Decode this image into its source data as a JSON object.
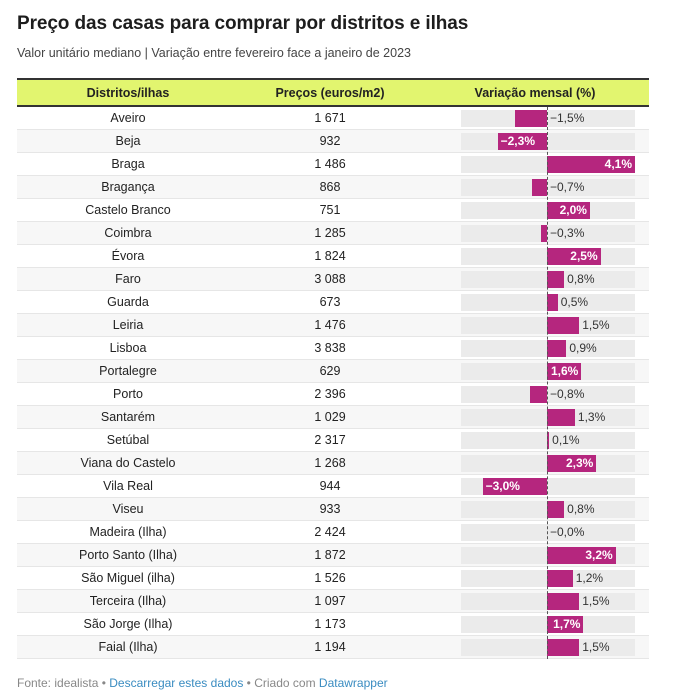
{
  "title": "Preço das casas para comprar por distritos e ilhas",
  "subtitle": "Valor unitário mediano | Variação entre fevereiro face a janeiro de 2023",
  "columns": [
    "Distritos/ilhas",
    "Preços (euros/m2)",
    "Variação mensal (%)"
  ],
  "footer": {
    "source": "Fonte: idealista",
    "sep1": " • ",
    "download_link": "Descarregar estes dados",
    "sep2": " • Criado com ",
    "datawrapper_link": "Datawrapper"
  },
  "colors": {
    "header_bg": "#e2f56f",
    "bar": "#b5267e",
    "bar_bg": "#ebebeb",
    "link": "#3a8cc1"
  },
  "chart_data": {
    "type": "table",
    "title": "Preço das casas para comprar por distritos e ilhas",
    "subtitle": "Valor unitário mediano | Variação entre fevereiro face a janeiro de 2023",
    "bar_range": [
      -4.0,
      4.1
    ],
    "rows": [
      {
        "name": "Aveiro",
        "price": "1 671",
        "change": -1.5,
        "label": "−1,5%"
      },
      {
        "name": "Beja",
        "price": "932",
        "change": -2.3,
        "label": "−2,3%"
      },
      {
        "name": "Braga",
        "price": "1 486",
        "change": 4.1,
        "label": "4,1%"
      },
      {
        "name": "Bragança",
        "price": "868",
        "change": -0.7,
        "label": "−0,7%"
      },
      {
        "name": "Castelo Branco",
        "price": "751",
        "change": 2.0,
        "label": "2,0%"
      },
      {
        "name": "Coimbra",
        "price": "1 285",
        "change": -0.3,
        "label": "−0,3%"
      },
      {
        "name": "Évora",
        "price": "1 824",
        "change": 2.5,
        "label": "2,5%"
      },
      {
        "name": "Faro",
        "price": "3 088",
        "change": 0.8,
        "label": "0,8%"
      },
      {
        "name": "Guarda",
        "price": "673",
        "change": 0.5,
        "label": "0,5%"
      },
      {
        "name": "Leiria",
        "price": "1 476",
        "change": 1.5,
        "label": "1,5%"
      },
      {
        "name": "Lisboa",
        "price": "3 838",
        "change": 0.9,
        "label": "0,9%"
      },
      {
        "name": "Portalegre",
        "price": "629",
        "change": 1.6,
        "label": "1,6%"
      },
      {
        "name": "Porto",
        "price": "2 396",
        "change": -0.8,
        "label": "−0,8%"
      },
      {
        "name": "Santarém",
        "price": "1 029",
        "change": 1.3,
        "label": "1,3%"
      },
      {
        "name": "Setúbal",
        "price": "2 317",
        "change": 0.1,
        "label": "0,1%"
      },
      {
        "name": "Viana do Castelo",
        "price": "1 268",
        "change": 2.3,
        "label": "2,3%"
      },
      {
        "name": "Vila Real",
        "price": "944",
        "change": -3.0,
        "label": "−3,0%"
      },
      {
        "name": "Viseu",
        "price": "933",
        "change": 0.8,
        "label": "0,8%"
      },
      {
        "name": "Madeira (Ilha)",
        "price": "2 424",
        "change": -0.0,
        "label": "−0,0%"
      },
      {
        "name": "Porto Santo (Ilha)",
        "price": "1 872",
        "change": 3.2,
        "label": "3,2%"
      },
      {
        "name": "São Miguel (ilha)",
        "price": "1 526",
        "change": 1.2,
        "label": "1,2%"
      },
      {
        "name": "Terceira (Ilha)",
        "price": "1 097",
        "change": 1.5,
        "label": "1,5%"
      },
      {
        "name": "São Jorge (Ilha)",
        "price": "1 173",
        "change": 1.7,
        "label": "1,7%"
      },
      {
        "name": "Faial (Ilha)",
        "price": "1 194",
        "change": 1.5,
        "label": "1,5%"
      }
    ]
  }
}
